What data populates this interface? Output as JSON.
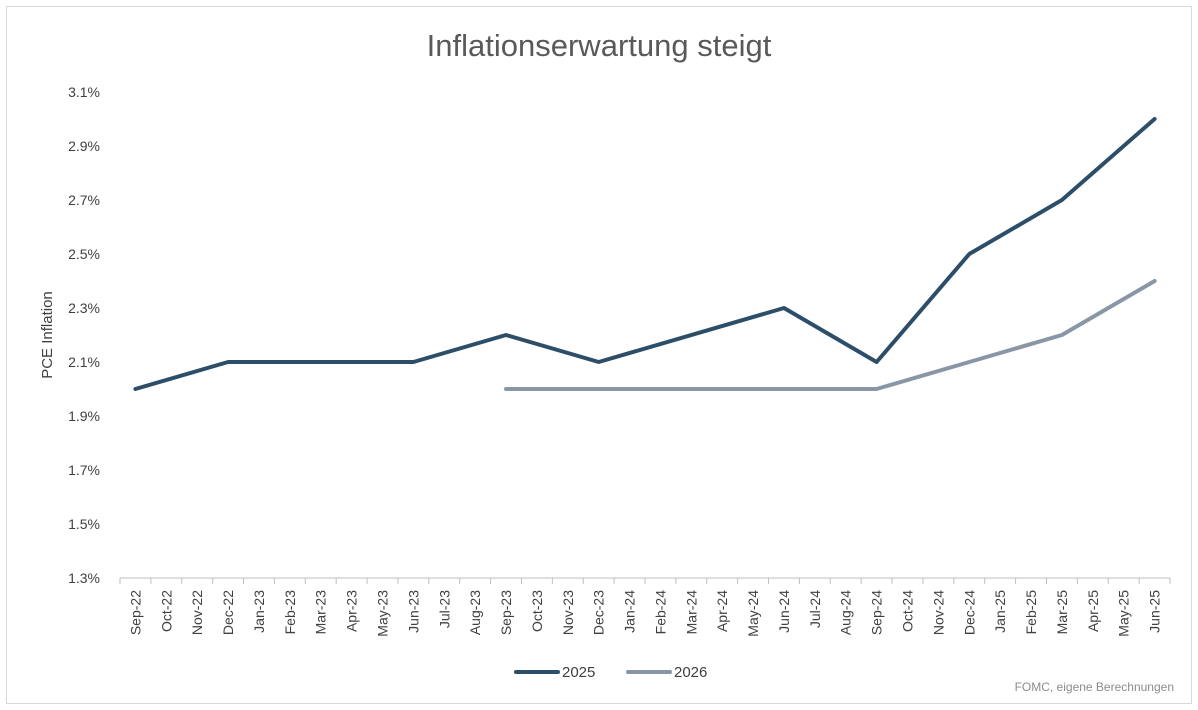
{
  "chart_data": {
    "type": "line",
    "title": "Inflationserwartung steigt",
    "ylabel": "PCE Inflation",
    "xlabel": "",
    "ylim": [
      1.3,
      3.1
    ],
    "yticks": [
      "1.3%",
      "1.5%",
      "1.7%",
      "1.9%",
      "2.1%",
      "2.3%",
      "2.5%",
      "2.7%",
      "2.9%",
      "3.1%"
    ],
    "categories": [
      "Sep-22",
      "Oct-22",
      "Nov-22",
      "Dec-22",
      "Jan-23",
      "Feb-23",
      "Mar-23",
      "Apr-23",
      "May-23",
      "Jun-23",
      "Jul-23",
      "Aug-23",
      "Sep-23",
      "Oct-23",
      "Nov-23",
      "Dec-23",
      "Jan-24",
      "Feb-24",
      "Mar-24",
      "Apr-24",
      "May-24",
      "Jun-24",
      "Jul-24",
      "Aug-24",
      "Sep-24",
      "Oct-24",
      "Nov-24",
      "Dec-24",
      "Jan-25",
      "Feb-25",
      "Mar-25",
      "Apr-25",
      "May-25",
      "Jun-25"
    ],
    "series": [
      {
        "name": "2025",
        "color": "#2d4e68",
        "values": [
          2.0,
          null,
          null,
          2.1,
          null,
          null,
          2.1,
          null,
          null,
          2.1,
          null,
          null,
          2.2,
          null,
          null,
          2.1,
          null,
          null,
          null,
          null,
          null,
          2.3,
          null,
          null,
          2.1,
          null,
          null,
          2.5,
          null,
          null,
          2.7,
          null,
          null,
          3.0
        ]
      },
      {
        "name": "2026",
        "color": "#8996a6",
        "values": [
          null,
          null,
          null,
          null,
          null,
          null,
          null,
          null,
          null,
          null,
          null,
          null,
          2.0,
          null,
          null,
          2.0,
          null,
          null,
          null,
          null,
          null,
          2.0,
          null,
          null,
          2.0,
          null,
          null,
          2.1,
          null,
          null,
          2.2,
          null,
          null,
          2.4
        ]
      }
    ],
    "legend_position": "bottom",
    "grid": false
  },
  "source": "FOMC, eigene Berechnungen"
}
